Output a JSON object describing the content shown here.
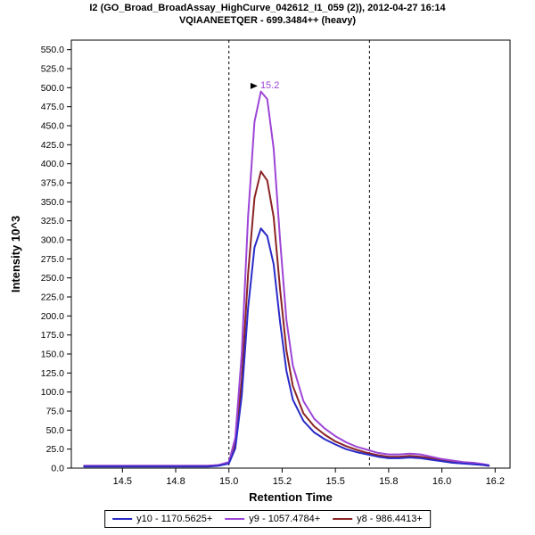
{
  "title": {
    "line1": "I2 (GO_Broad_BroadAssay_HighCurve_042612_I1_059 (2)), 2012-04-27 16:14",
    "line2": "VQIAANEETQER - 699.3484++ (heavy)"
  },
  "chart_data": {
    "type": "line",
    "title": "I2 (GO_Broad_BroadAssay_HighCurve_042612_I1_059 (2)), 2012-04-27 16:14",
    "subtitle": "VQIAANEETQER - 699.3484++ (heavy)",
    "xlabel": "Retention Time",
    "ylabel": "Intensity 10^3",
    "xlim": [
      14.26,
      16.32
    ],
    "ylim": [
      0,
      562.5
    ],
    "xticks": [
      14.5,
      14.75,
      15.0,
      15.25,
      15.5,
      15.75,
      16.0,
      16.25
    ],
    "xtick_labels": [
      "14.5",
      "14.8",
      "15.0",
      "15.2",
      "15.5",
      "15.8",
      "16.0",
      "16.2"
    ],
    "ytick_min": 0,
    "ytick_max": 550,
    "ytick_step": 25,
    "grid": false,
    "legend_position": "bottom",
    "boundaries": [
      15.0,
      15.66
    ],
    "annotation": {
      "text": "15.2",
      "x": 15.16,
      "y": 497
    },
    "x": [
      14.32,
      14.4,
      14.5,
      14.6,
      14.7,
      14.8,
      14.9,
      14.95,
      15.0,
      15.03,
      15.06,
      15.09,
      15.12,
      15.15,
      15.18,
      15.21,
      15.24,
      15.27,
      15.3,
      15.35,
      15.4,
      15.45,
      15.5,
      15.55,
      15.6,
      15.65,
      15.7,
      15.75,
      15.8,
      15.85,
      15.9,
      15.95,
      16.0,
      16.05,
      16.1,
      16.15,
      16.2,
      16.22
    ],
    "series": [
      {
        "name": "y10 - 1170.5625+",
        "color": "#2a2ac8",
        "values": [
          2,
          2,
          2,
          2,
          2,
          2,
          2,
          3,
          6,
          26,
          95,
          210,
          290,
          315,
          305,
          268,
          192,
          128,
          90,
          62,
          47,
          38,
          31,
          25,
          21,
          18,
          15,
          13,
          13,
          14,
          13,
          11,
          9,
          7,
          6,
          5,
          4,
          3
        ]
      },
      {
        "name": "y9 - 1057.4784+",
        "color": "#9d45d6",
        "values": [
          3,
          3,
          3,
          3,
          3,
          3,
          3,
          4,
          8,
          40,
          150,
          330,
          455,
          495,
          485,
          420,
          300,
          195,
          135,
          88,
          65,
          52,
          42,
          34,
          28,
          24,
          20,
          18,
          18,
          19,
          18,
          15,
          12,
          10,
          8,
          7,
          5,
          4
        ]
      },
      {
        "name": "y8 - 986.4413+",
        "color": "#8b2424",
        "values": [
          3,
          3,
          3,
          3,
          3,
          3,
          3,
          4,
          7,
          32,
          115,
          255,
          355,
          390,
          378,
          330,
          235,
          155,
          108,
          72,
          55,
          44,
          35,
          29,
          24,
          20,
          17,
          15,
          15,
          16,
          15,
          13,
          10,
          8,
          7,
          6,
          4,
          3
        ]
      }
    ]
  }
}
